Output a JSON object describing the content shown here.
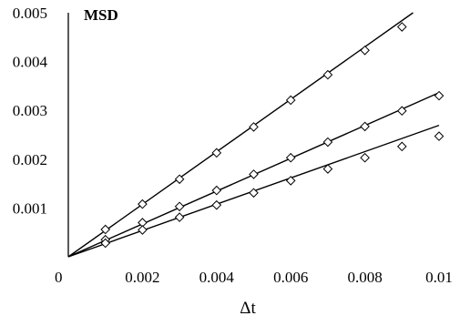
{
  "chart_data": {
    "type": "scatter",
    "title": "MSD",
    "xlabel": "Δt",
    "ylabel": "",
    "xlim": [
      0,
      0.01
    ],
    "ylim": [
      0,
      0.005
    ],
    "grid": false,
    "origin_label": "0",
    "xticks": [
      {
        "value": 0.002,
        "label": "0.002"
      },
      {
        "value": 0.004,
        "label": "0.004"
      },
      {
        "value": 0.006,
        "label": "0.006"
      },
      {
        "value": 0.008,
        "label": "0.008"
      },
      {
        "value": 0.01,
        "label": "0.01"
      }
    ],
    "yticks": [
      {
        "value": 0.001,
        "label": "0.001"
      },
      {
        "value": 0.002,
        "label": "0.002"
      },
      {
        "value": 0.003,
        "label": "0.003"
      },
      {
        "value": 0.004,
        "label": "0.004"
      },
      {
        "value": 0.005,
        "label": "0.005"
      }
    ],
    "series": [
      {
        "x": [
          0.001,
          0.002,
          0.003,
          0.004,
          0.005,
          0.006,
          0.007,
          0.008,
          0.009
        ],
        "values": [
          0.00056,
          0.00108,
          0.00159,
          0.00213,
          0.00266,
          0.00321,
          0.00373,
          0.00423,
          0.00471
        ],
        "fit_slope": 0.5377
      },
      {
        "x": [
          0.001,
          0.002,
          0.003,
          0.004,
          0.005,
          0.006,
          0.007,
          0.008,
          0.009,
          0.01
        ],
        "values": [
          0.00035,
          0.0007,
          0.00103,
          0.00136,
          0.00169,
          0.00203,
          0.00235,
          0.00267,
          0.00299,
          0.0033
        ],
        "fit_slope": 0.3362
      },
      {
        "x": [
          0.001,
          0.002,
          0.003,
          0.004,
          0.005,
          0.006,
          0.007,
          0.008,
          0.009,
          0.01
        ],
        "values": [
          0.00028,
          0.00055,
          0.00081,
          0.00106,
          0.00131,
          0.00156,
          0.0018,
          0.00203,
          0.00226,
          0.00247
        ],
        "fit_slope": 0.2694
      }
    ]
  }
}
